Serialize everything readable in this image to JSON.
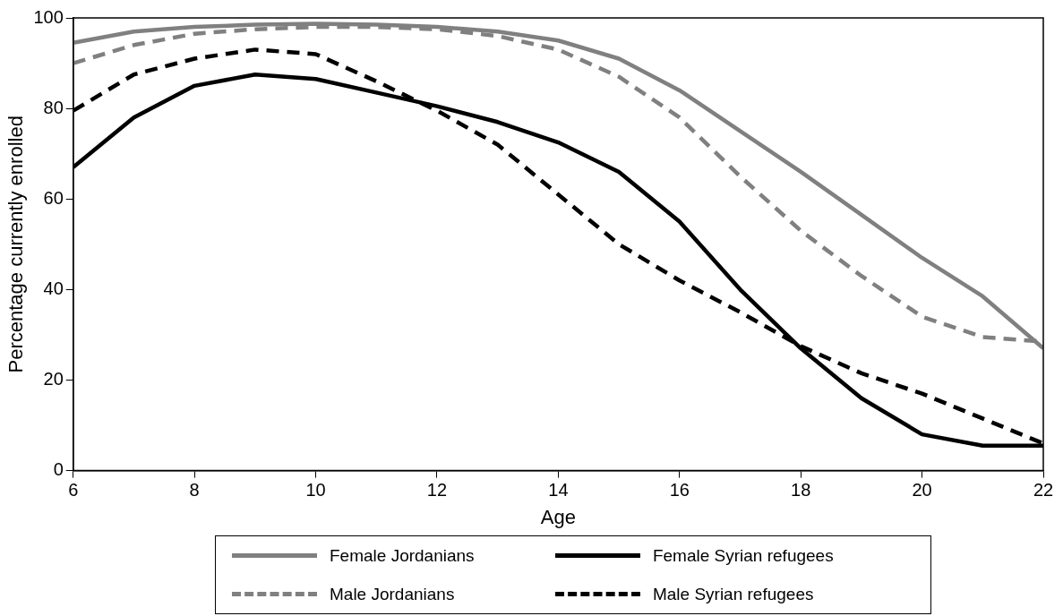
{
  "chart_data": {
    "type": "line",
    "xlabel": "Age",
    "ylabel": "Percentage currently enrolled",
    "x": [
      6,
      7,
      8,
      9,
      10,
      11,
      12,
      13,
      14,
      15,
      16,
      17,
      18,
      19,
      20,
      21,
      22
    ],
    "xlim": [
      6,
      22
    ],
    "xticks": [
      6,
      8,
      10,
      12,
      14,
      16,
      18,
      20,
      22
    ],
    "ylim": [
      0,
      100
    ],
    "yticks": [
      0,
      20,
      40,
      60,
      80,
      100
    ],
    "grid": false,
    "legend": "bottom",
    "marker": "none",
    "series": [
      {
        "name": "Female Jordanians",
        "color": "#808080",
        "line_style": "solid",
        "values": [
          94.5,
          97,
          98,
          98.5,
          98.7,
          98.5,
          98,
          97,
          95,
          91,
          84,
          75,
          66,
          56.5,
          47,
          38.5,
          27
        ]
      },
      {
        "name": "Male Jordanians",
        "color": "#808080",
        "line_style": "dashed",
        "values": [
          90,
          94,
          96.5,
          97.5,
          98,
          98,
          97.5,
          96,
          93,
          87,
          78,
          65,
          53,
          43,
          34,
          29.5,
          28.5
        ]
      },
      {
        "name": "Female Syrian refugees",
        "color": "#000000",
        "line_style": "solid",
        "values": [
          67,
          78,
          85,
          87.5,
          86.5,
          83.5,
          80.5,
          77,
          72.5,
          66,
          55,
          40,
          27,
          16,
          8,
          5.5,
          5.5
        ]
      },
      {
        "name": "Male Syrian refugees",
        "color": "#000000",
        "line_style": "dashed",
        "values": [
          79.5,
          87.5,
          91,
          93,
          92,
          86,
          79.5,
          72,
          61,
          50,
          42,
          35,
          27.5,
          21.5,
          17,
          11.5,
          6
        ]
      }
    ]
  }
}
